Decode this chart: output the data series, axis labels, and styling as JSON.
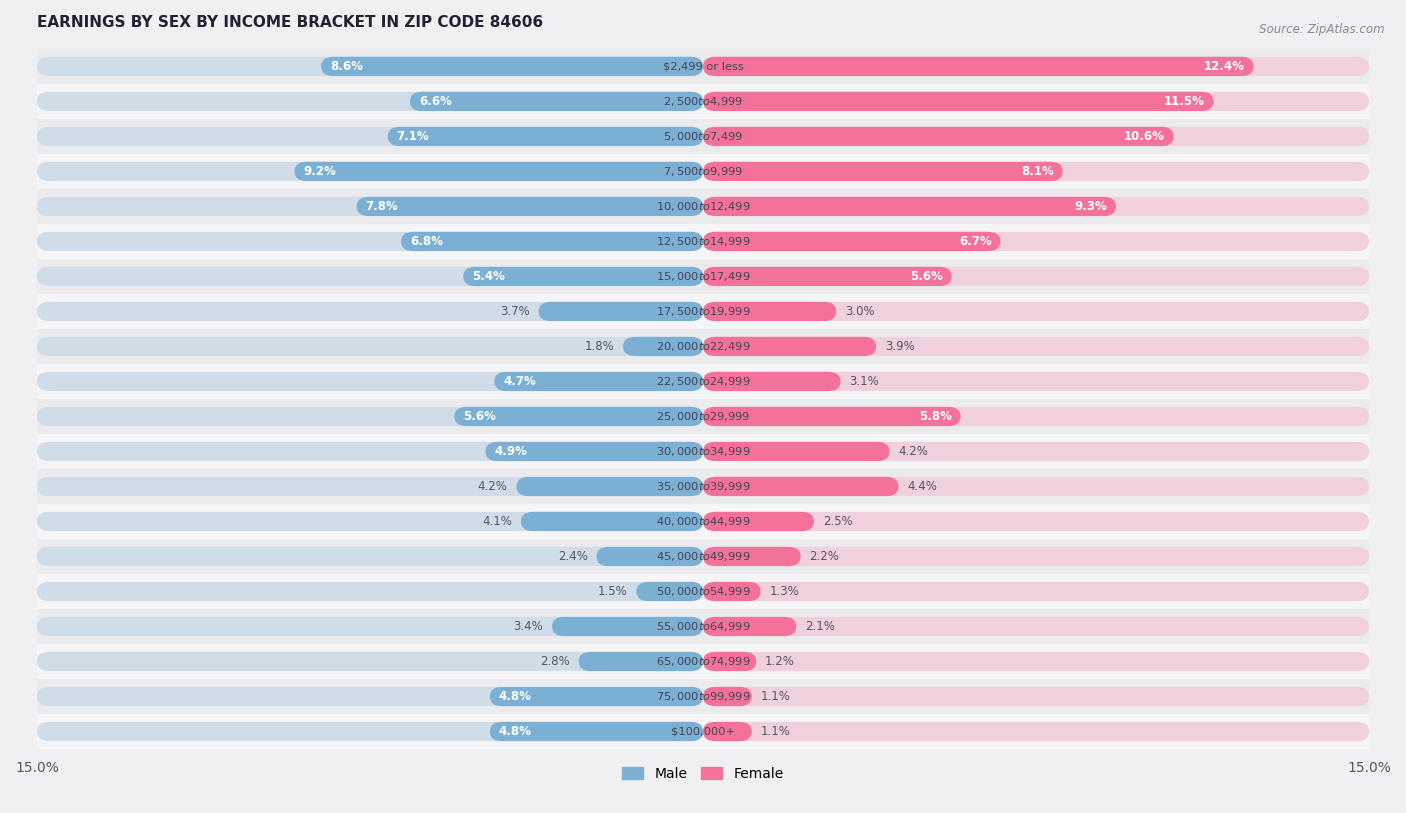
{
  "title": "EARNINGS BY SEX BY INCOME BRACKET IN ZIP CODE 84606",
  "source": "Source: ZipAtlas.com",
  "categories": [
    "$2,499 or less",
    "$2,500 to $4,999",
    "$5,000 to $7,499",
    "$7,500 to $9,999",
    "$10,000 to $12,499",
    "$12,500 to $14,999",
    "$15,000 to $17,499",
    "$17,500 to $19,999",
    "$20,000 to $22,499",
    "$22,500 to $24,999",
    "$25,000 to $29,999",
    "$30,000 to $34,999",
    "$35,000 to $39,999",
    "$40,000 to $44,999",
    "$45,000 to $49,999",
    "$50,000 to $54,999",
    "$55,000 to $64,999",
    "$65,000 to $74,999",
    "$75,000 to $99,999",
    "$100,000+"
  ],
  "male_values": [
    8.6,
    6.6,
    7.1,
    9.2,
    7.8,
    6.8,
    5.4,
    3.7,
    1.8,
    4.7,
    5.6,
    4.9,
    4.2,
    4.1,
    2.4,
    1.5,
    3.4,
    2.8,
    4.8,
    4.8
  ],
  "female_values": [
    12.4,
    11.5,
    10.6,
    8.1,
    9.3,
    6.7,
    5.6,
    3.0,
    3.9,
    3.1,
    5.8,
    4.2,
    4.4,
    2.5,
    2.2,
    1.3,
    2.1,
    1.2,
    1.1,
    1.1
  ],
  "male_color": "#7bafd4",
  "female_color": "#f4719a",
  "male_label": "Male",
  "female_label": "Female",
  "xlim": 15.0,
  "row_even_color": "#ebebee",
  "row_odd_color": "#f5f5f8",
  "track_male_color": "#d0dce8",
  "track_female_color": "#f0d0dc"
}
